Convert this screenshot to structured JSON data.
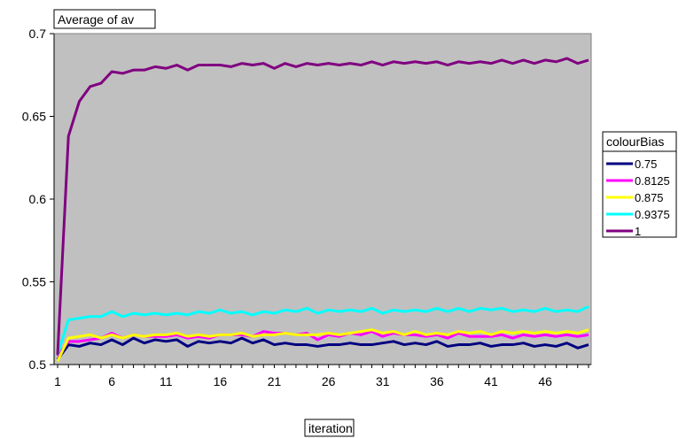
{
  "chart_data": {
    "type": "line",
    "title": "Average of av",
    "xlabel": "iteration",
    "ylabel": "",
    "ylim": [
      0.5,
      0.7
    ],
    "yticks": [
      "0.5",
      "0.55",
      "0.6",
      "0.65",
      "0.7"
    ],
    "x": [
      1,
      2,
      3,
      4,
      5,
      6,
      7,
      8,
      9,
      10,
      11,
      12,
      13,
      14,
      15,
      16,
      17,
      18,
      19,
      20,
      21,
      22,
      23,
      24,
      25,
      26,
      27,
      28,
      29,
      30,
      31,
      32,
      33,
      34,
      35,
      36,
      37,
      38,
      39,
      40,
      41,
      42,
      43,
      44,
      45,
      46,
      47,
      48,
      49,
      50
    ],
    "xticks": [
      "1",
      "6",
      "11",
      "16",
      "21",
      "26",
      "31",
      "36",
      "41",
      "46"
    ],
    "legend": {
      "title": "colourBias",
      "position": "right"
    },
    "series": [
      {
        "name": "0.75",
        "color": "#000080",
        "values": [
          0.503,
          0.512,
          0.511,
          0.513,
          0.512,
          0.515,
          0.512,
          0.516,
          0.513,
          0.515,
          0.514,
          0.515,
          0.511,
          0.514,
          0.513,
          0.514,
          0.513,
          0.516,
          0.513,
          0.515,
          0.512,
          0.513,
          0.512,
          0.512,
          0.511,
          0.512,
          0.512,
          0.513,
          0.512,
          0.512,
          0.513,
          0.514,
          0.512,
          0.513,
          0.512,
          0.514,
          0.511,
          0.512,
          0.512,
          0.513,
          0.511,
          0.512,
          0.512,
          0.513,
          0.511,
          0.512,
          0.511,
          0.513,
          0.51,
          0.512
        ]
      },
      {
        "name": "0.8125",
        "color": "#FF00FF",
        "values": [
          0.505,
          0.514,
          0.514,
          0.515,
          0.516,
          0.519,
          0.516,
          0.518,
          0.517,
          0.517,
          0.517,
          0.518,
          0.516,
          0.517,
          0.516,
          0.518,
          0.518,
          0.518,
          0.517,
          0.52,
          0.519,
          0.519,
          0.518,
          0.519,
          0.515,
          0.518,
          0.517,
          0.519,
          0.518,
          0.52,
          0.517,
          0.519,
          0.518,
          0.518,
          0.517,
          0.518,
          0.516,
          0.519,
          0.517,
          0.517,
          0.517,
          0.518,
          0.516,
          0.518,
          0.517,
          0.518,
          0.517,
          0.518,
          0.517,
          0.518
        ]
      },
      {
        "name": "0.875",
        "color": "#FFFF00",
        "values": [
          0.502,
          0.516,
          0.517,
          0.518,
          0.516,
          0.518,
          0.516,
          0.518,
          0.517,
          0.518,
          0.518,
          0.519,
          0.517,
          0.518,
          0.517,
          0.518,
          0.518,
          0.519,
          0.517,
          0.518,
          0.518,
          0.519,
          0.518,
          0.518,
          0.518,
          0.519,
          0.518,
          0.519,
          0.52,
          0.521,
          0.519,
          0.52,
          0.518,
          0.52,
          0.518,
          0.519,
          0.518,
          0.52,
          0.519,
          0.52,
          0.518,
          0.52,
          0.519,
          0.52,
          0.519,
          0.52,
          0.519,
          0.52,
          0.519,
          0.521
        ]
      },
      {
        "name": "0.9375",
        "color": "#00FFFF",
        "values": [
          0.506,
          0.527,
          0.528,
          0.529,
          0.529,
          0.532,
          0.529,
          0.531,
          0.53,
          0.531,
          0.53,
          0.531,
          0.53,
          0.532,
          0.531,
          0.533,
          0.531,
          0.532,
          0.53,
          0.532,
          0.531,
          0.533,
          0.532,
          0.534,
          0.531,
          0.533,
          0.532,
          0.533,
          0.532,
          0.534,
          0.531,
          0.533,
          0.532,
          0.533,
          0.532,
          0.534,
          0.532,
          0.534,
          0.532,
          0.534,
          0.533,
          0.534,
          0.532,
          0.533,
          0.532,
          0.534,
          0.532,
          0.533,
          0.532,
          0.535
        ]
      },
      {
        "name": "1",
        "color": "#800080",
        "values": [
          0.506,
          0.638,
          0.659,
          0.668,
          0.67,
          0.677,
          0.676,
          0.678,
          0.678,
          0.68,
          0.679,
          0.681,
          0.678,
          0.681,
          0.681,
          0.681,
          0.68,
          0.682,
          0.681,
          0.682,
          0.679,
          0.682,
          0.68,
          0.682,
          0.681,
          0.682,
          0.681,
          0.682,
          0.681,
          0.683,
          0.681,
          0.683,
          0.682,
          0.683,
          0.682,
          0.683,
          0.681,
          0.683,
          0.682,
          0.683,
          0.682,
          0.684,
          0.682,
          0.684,
          0.682,
          0.684,
          0.683,
          0.685,
          0.682,
          0.684
        ]
      }
    ]
  }
}
